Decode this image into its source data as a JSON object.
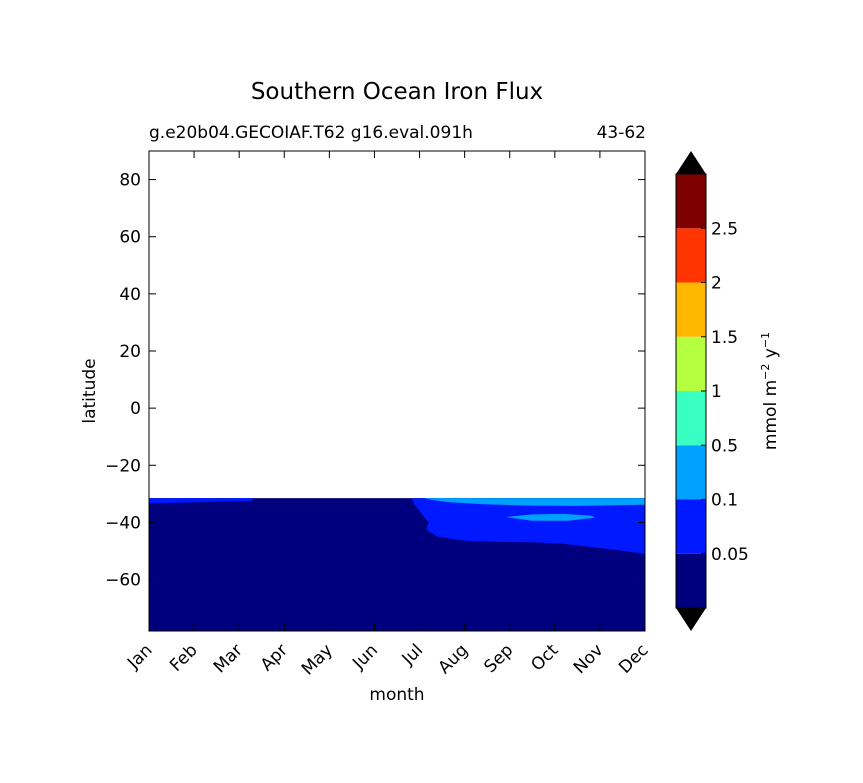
{
  "chart_data": {
    "type": "heatmap",
    "title": "Southern Ocean Iron Flux",
    "subtitle_left": "g.e20b04.GECOIAF.T62 g16.eval.091h",
    "subtitle_right": "43-62",
    "xlabel": "month",
    "ylabel": "latitude",
    "x_categories": [
      "Jan",
      "Feb",
      "Mar",
      "Apr",
      "May",
      "Jun",
      "Jul",
      "Aug",
      "Sep",
      "Oct",
      "Nov",
      "Dec"
    ],
    "xlim": [
      0,
      11
    ],
    "ylim": [
      -78,
      90
    ],
    "y_ticks": [
      80,
      60,
      40,
      20,
      0,
      -20,
      -40,
      -60
    ],
    "y_tick_labels": [
      "80",
      "60",
      "40",
      "20",
      "0",
      "−20",
      "−40",
      "−60"
    ],
    "data_lat_max": -31.5,
    "colorbar": {
      "label_main": "mmol m",
      "label_sup1": "−2",
      "label_mid": " y",
      "label_sup2": "−1",
      "levels": [
        0,
        0.05,
        0.1,
        0.5,
        1,
        1.5,
        2,
        2.5,
        3
      ],
      "colors": [
        "#00007f",
        "#0019ff",
        "#00a0ff",
        "#3affc3",
        "#b5ff41",
        "#ffb700",
        "#ff3500",
        "#7f0000"
      ],
      "extend_colors": {
        "under": "#000000",
        "over": "#000000"
      },
      "tick_labels": [
        "0.05",
        "0.1",
        "0.5",
        "1",
        "1.5",
        "2",
        "2.5"
      ]
    },
    "contours": [
      {
        "level_index": 1,
        "color": "#0019ff",
        "points": [
          [
            0,
            -31.5
          ],
          [
            2.3,
            -31.5
          ],
          [
            2.3,
            -32.4
          ],
          [
            1.4,
            -32.8
          ],
          [
            0.6,
            -33.1
          ],
          [
            0,
            -33.3
          ]
        ]
      },
      {
        "level_index": 1,
        "color": "#0019ff",
        "points": [
          [
            5.8,
            -31.5
          ],
          [
            11,
            -31.5
          ],
          [
            11,
            -51
          ],
          [
            10.3,
            -49.5
          ],
          [
            9.2,
            -47.5
          ],
          [
            8.6,
            -47
          ],
          [
            7.8,
            -46.8
          ],
          [
            7,
            -46.4
          ],
          [
            6.4,
            -45
          ],
          [
            6.15,
            -42.5
          ],
          [
            6.2,
            -40
          ],
          [
            6.05,
            -37
          ],
          [
            5.9,
            -34
          ],
          [
            5.85,
            -32.5
          ]
        ]
      },
      {
        "level_index": 2,
        "color": "#00a0ff",
        "points": [
          [
            6.1,
            -31.5
          ],
          [
            11,
            -31.5
          ],
          [
            11,
            -33.8
          ],
          [
            9.5,
            -34.2
          ],
          [
            8.5,
            -34.1
          ],
          [
            7.5,
            -33.7
          ],
          [
            6.7,
            -33
          ],
          [
            6.3,
            -32.2
          ]
        ]
      },
      {
        "level_index": 2,
        "color": "#00a0ff",
        "points": [
          [
            7.9,
            -38.1
          ],
          [
            8.5,
            -37.2
          ],
          [
            9.2,
            -37
          ],
          [
            9.8,
            -37.6
          ],
          [
            9.9,
            -38.3
          ],
          [
            9.3,
            -39.4
          ],
          [
            8.5,
            -39.4
          ]
        ]
      }
    ]
  }
}
